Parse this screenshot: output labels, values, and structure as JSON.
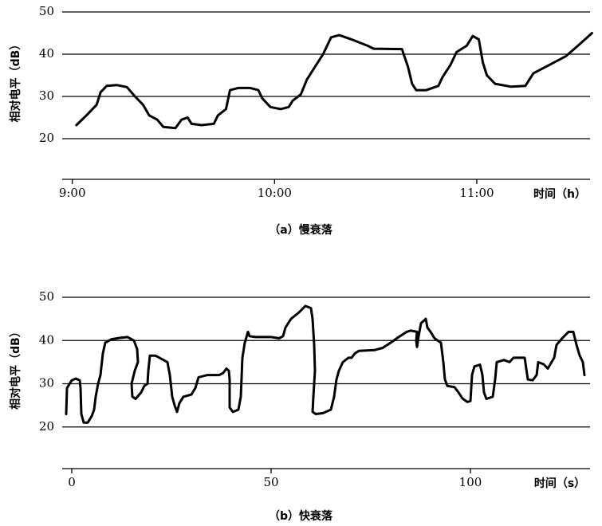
{
  "chart_data": [
    {
      "type": "line",
      "caption": "（a）慢衰落",
      "xlabel": "时间（h）",
      "ylabel": "相对电平（dB）",
      "xlim": [
        8.95,
        11.56
      ],
      "ylim": [
        10,
        50
      ],
      "xticks": [
        {
          "value": 9,
          "label": "9:00"
        },
        {
          "value": 10,
          "label": "10:00"
        },
        {
          "value": 11,
          "label": "11:00"
        }
      ],
      "yticks": [
        20,
        30,
        40,
        50
      ],
      "grid": true,
      "series": [
        {
          "color": "#000000",
          "x": [
            9.02,
            9.07,
            9.12,
            9.14,
            9.17,
            9.22,
            9.27,
            9.31,
            9.35,
            9.38,
            9.42,
            9.45,
            9.51,
            9.54,
            9.57,
            9.59,
            9.64,
            9.7,
            9.72,
            9.76,
            9.78,
            9.82,
            9.88,
            9.92,
            9.94,
            9.98,
            10.03,
            10.07,
            10.09,
            10.13,
            10.16,
            10.2,
            10.24,
            10.28,
            10.32,
            10.38,
            10.46,
            10.49,
            10.63,
            10.66,
            10.68,
            10.7,
            10.75,
            10.81,
            10.83,
            10.87,
            10.9,
            10.95,
            10.98,
            11.01,
            11.03,
            11.05,
            11.09,
            11.17,
            11.24,
            11.28,
            11.36,
            11.44,
            11.5,
            11.57
          ],
          "values": [
            23.2,
            25.5,
            28,
            31,
            32.5,
            32.7,
            32.2,
            30,
            28,
            25.5,
            24.5,
            22.8,
            22.5,
            24.5,
            25,
            23.5,
            23.2,
            23.5,
            25.5,
            27,
            31.5,
            32,
            32,
            31.5,
            29.5,
            27.5,
            27,
            27.5,
            29,
            30.5,
            34,
            37,
            40,
            44,
            44.5,
            43.5,
            42,
            41.3,
            41.2,
            37,
            33,
            31.5,
            31.5,
            32.5,
            34.5,
            37.5,
            40.5,
            42,
            44.3,
            43.5,
            38,
            35,
            33,
            32.3,
            32.5,
            35.5,
            37.5,
            39.5,
            42,
            45
          ]
        }
      ]
    },
    {
      "type": "line",
      "caption": "（b）快衰落",
      "xlabel": "时间（s）",
      "ylabel": "相对电平（dB）",
      "xlim": [
        -2.4,
        130
      ],
      "ylim": [
        10,
        50
      ],
      "xticks": [
        0,
        50,
        100
      ],
      "yticks": [
        20,
        30,
        40,
        50
      ],
      "grid": true,
      "series": [
        {
          "color": "#000000",
          "x": [
            -1.4,
            -1.2,
            0,
            1,
            2,
            2.2,
            2.4,
            3,
            4,
            5,
            5.6,
            6,
            6.6,
            7.2,
            7.8,
            8.4,
            10,
            12,
            14,
            15.6,
            16.4,
            16.6,
            15.8,
            15,
            15.2,
            16,
            17.4,
            18.2,
            19,
            19.2,
            19.6,
            21,
            23,
            24,
            24.6,
            25.2,
            25.8,
            26.4,
            27,
            28,
            30,
            31,
            31.8,
            34,
            37,
            38,
            38.8,
            39.4,
            39.6,
            39.6,
            40.4,
            41.8,
            42.4,
            42.8,
            43.4,
            44.2,
            44.6,
            46,
            50,
            52,
            53,
            53.6,
            55,
            57,
            58.6,
            60,
            60.4,
            60.8,
            61,
            60.6,
            60.4,
            61.2,
            63,
            65,
            65.8,
            66.4,
            67,
            68,
            69.4,
            70.2,
            71,
            72,
            76,
            78,
            80,
            82,
            84,
            85,
            86.6,
            86.4,
            86.6,
            87,
            87.6,
            88.8,
            89.2,
            90,
            91,
            92.6,
            93.2,
            93.6,
            94.2,
            96,
            97,
            98,
            99.2,
            100,
            100.4,
            101,
            102.4,
            103,
            103.4,
            104,
            105.6,
            106.2,
            106.6,
            108.4,
            109.8,
            110.8,
            112,
            113.6,
            114,
            114.4,
            115.6,
            116.6,
            117,
            118.4,
            119.4,
            121,
            121.6,
            123,
            124.6,
            125.8,
            126.6,
            127.4,
            128.2,
            128.6
          ],
          "values": [
            23,
            29,
            30.8,
            31.2,
            30.8,
            29,
            23,
            21,
            21,
            22.5,
            24,
            27,
            30,
            32,
            37,
            39.5,
            40.3,
            40.6,
            40.8,
            40,
            38,
            35,
            33,
            30,
            27,
            26.5,
            28,
            29.5,
            30,
            33,
            36.5,
            36.5,
            35.5,
            35,
            32,
            27,
            25,
            23.5,
            25.5,
            27,
            27.5,
            29,
            31.5,
            32,
            32,
            32.5,
            33.5,
            33,
            31,
            24.5,
            23.5,
            24,
            27,
            36,
            39.5,
            42,
            41,
            40.8,
            40.8,
            40.5,
            41,
            43,
            45,
            46.5,
            48,
            47.5,
            45,
            39,
            33,
            27,
            23.5,
            23,
            23.2,
            24,
            27,
            31,
            33,
            35,
            36,
            36,
            37,
            37.6,
            37.8,
            38.3,
            39.5,
            40.8,
            42,
            42.3,
            42,
            40,
            38.5,
            41,
            44,
            45,
            43,
            42,
            40.5,
            39.5,
            35,
            31,
            29.5,
            29.2,
            28,
            26.6,
            25.8,
            26,
            32,
            34,
            34.4,
            32,
            28,
            26.5,
            27,
            31,
            35,
            35.5,
            35,
            36,
            36,
            36,
            33.5,
            31,
            30.8,
            32,
            35,
            34.5,
            33.5,
            36,
            39,
            40.5,
            42,
            42,
            39,
            36.5,
            35,
            32
          ]
        }
      ]
    }
  ]
}
